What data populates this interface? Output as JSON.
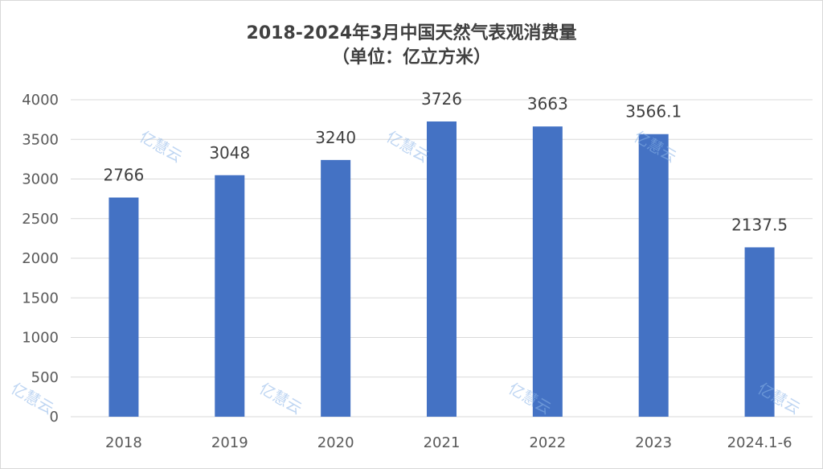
{
  "chart_data": {
    "type": "bar",
    "title": "2018-2024年3月中国天然气表观消费量",
    "subtitle": "（单位：亿立方米）",
    "categories": [
      "2018",
      "2019",
      "2020",
      "2021",
      "2022",
      "2023",
      "2024.1-6"
    ],
    "values": [
      2766,
      3048,
      3240,
      3726,
      3663,
      3566.1,
      2137.5
    ],
    "value_labels": [
      "2766",
      "3048",
      "3240",
      "3726",
      "3663",
      "3566.1",
      "2137.5"
    ],
    "ylim": [
      0,
      4000
    ],
    "yticks": [
      0,
      500,
      1000,
      1500,
      2000,
      2500,
      3000,
      3500,
      4000
    ],
    "xlabel": "",
    "ylabel": "",
    "grid": true,
    "legend": "none",
    "bar_color": "#4472c4"
  },
  "watermark": "亿慧云"
}
